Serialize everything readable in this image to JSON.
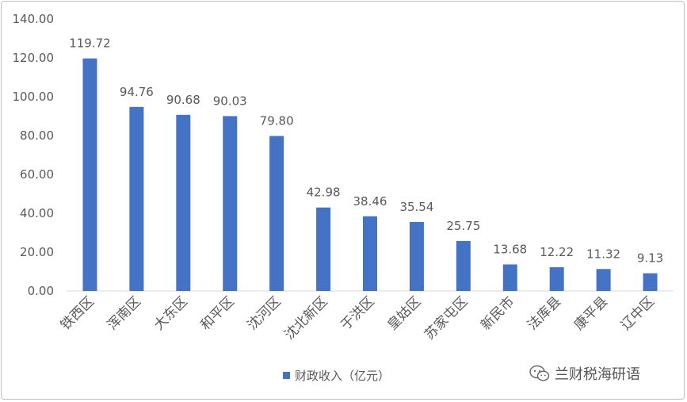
{
  "chart_data": {
    "type": "bar",
    "categories": [
      "铁西区",
      "浑南区",
      "大东区",
      "和平区",
      "沈河区",
      "沈北新区",
      "于洪区",
      "皇姑区",
      "苏家屯区",
      "新民市",
      "法库县",
      "康平县",
      "辽中区"
    ],
    "series": [
      {
        "name": "财政收入（亿元）",
        "values": [
          119.72,
          94.76,
          90.68,
          90.03,
          79.8,
          42.98,
          38.46,
          35.54,
          25.75,
          13.68,
          12.22,
          11.32,
          9.13
        ]
      }
    ],
    "data_labels": [
      "119.72",
      "94.76",
      "90.68",
      "90.03",
      "79.80",
      "42.98",
      "38.46",
      "35.54",
      "25.75",
      "13.68",
      "12.22",
      "11.32",
      "9.13"
    ],
    "yticks": [
      "0.00",
      "20.00",
      "40.00",
      "60.00",
      "80.00",
      "100.00",
      "120.00",
      "140.00"
    ],
    "ylim": [
      0,
      140
    ],
    "grid": false,
    "legend_position": "bottom",
    "bar_color": "#4472c4",
    "title": "",
    "xlabel": "",
    "ylabel": ""
  },
  "legend": {
    "label": "财政收入（亿元）"
  },
  "watermark": {
    "text": "兰财税海研语",
    "icon": "wechat-icon"
  },
  "colors": {
    "axis": "#d9d9d9",
    "text": "#595959",
    "bar": "#4472c4"
  }
}
